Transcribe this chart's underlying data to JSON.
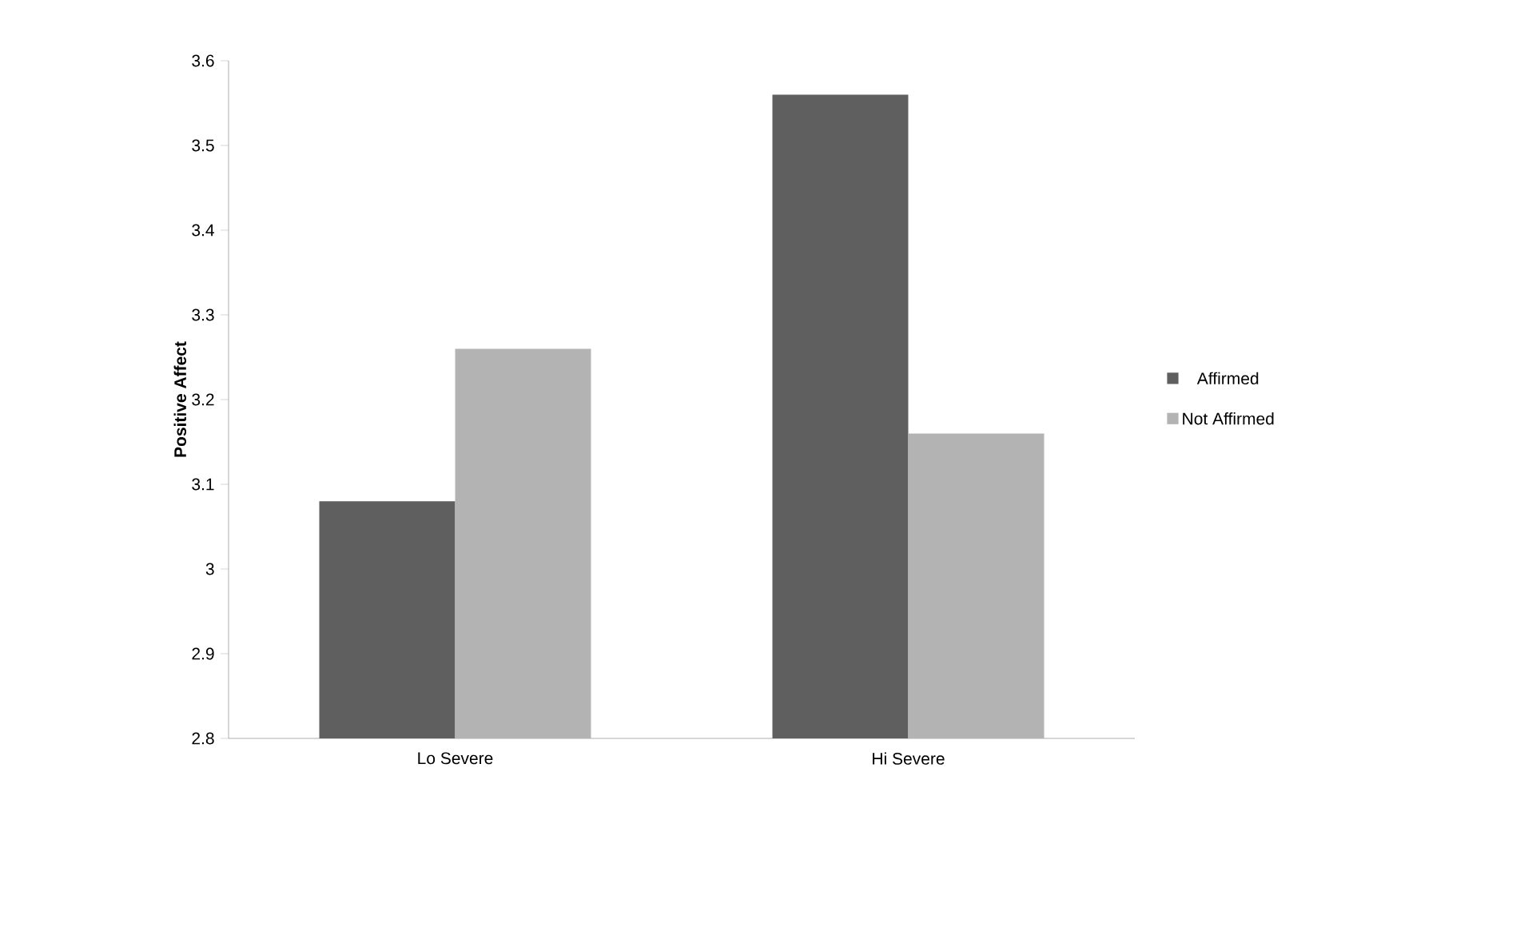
{
  "chart_data": {
    "type": "bar",
    "ylabel": "Positive Affect",
    "categories": [
      "Lo Severe",
      "Hi Severe"
    ],
    "series": [
      {
        "name": "Affirmed",
        "color": "#5f5f5f",
        "values": [
          3.08,
          3.56
        ]
      },
      {
        "name": "Not Affirmed",
        "color": "#b3b3b3",
        "values": [
          3.26,
          3.16
        ]
      }
    ],
    "ylim": [
      2.8,
      3.6
    ],
    "yticks": [
      2.8,
      2.9,
      3,
      3.1,
      3.2,
      3.3,
      3.4,
      3.5,
      3.6
    ],
    "legend": "right"
  }
}
